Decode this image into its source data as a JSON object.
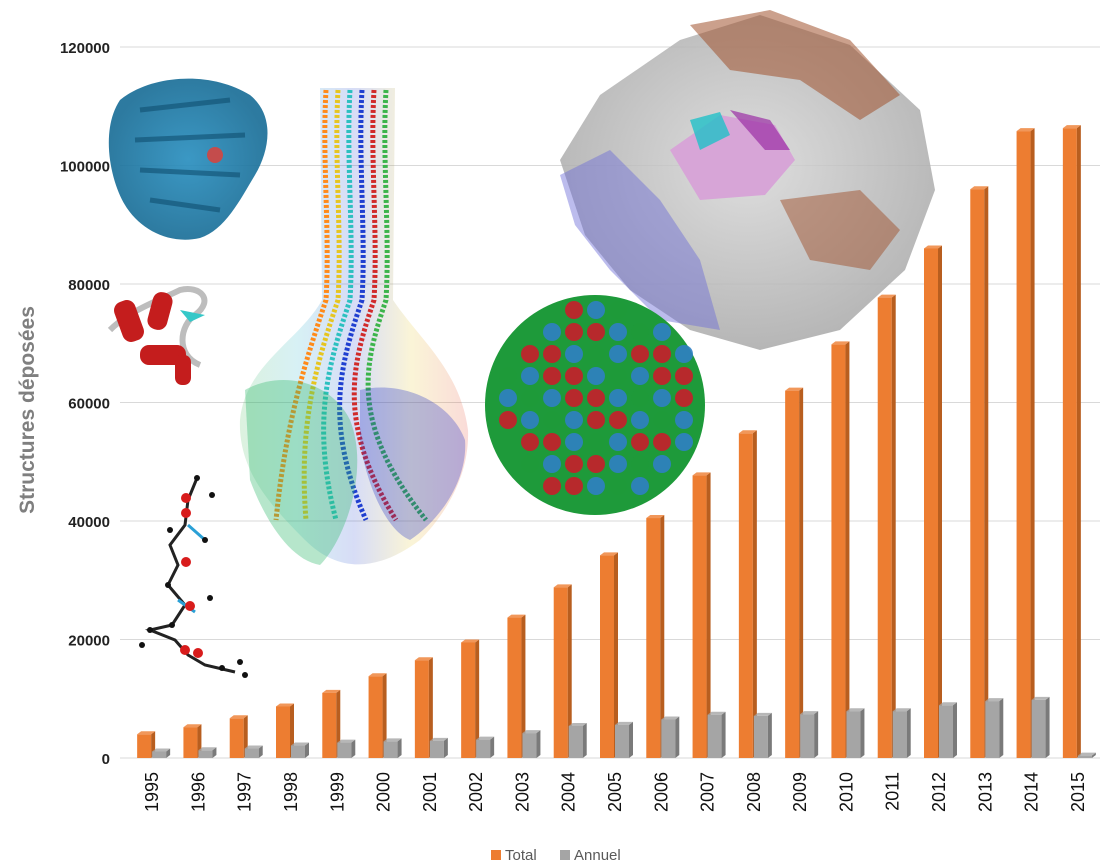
{
  "chart_data": {
    "type": "bar",
    "ylabel": "Structures déposées",
    "xlabel": "",
    "ylim": [
      0,
      120000
    ],
    "yticks": [
      0,
      20000,
      40000,
      60000,
      80000,
      100000,
      120000
    ],
    "ytick_labels": [
      "0",
      "20000",
      "40000",
      "60000",
      "80000",
      "100000",
      "120000"
    ],
    "grid": true,
    "legend_position": "bottom-center",
    "categories": [
      "1995",
      "1996",
      "1997",
      "1998",
      "1999",
      "2000",
      "2001",
      "2002",
      "2003",
      "2004",
      "2005",
      "2006",
      "2007",
      "2008",
      "2009",
      "2010",
      "2011",
      "2012",
      "2013",
      "2014",
      "2015"
    ],
    "series": [
      {
        "name": "Total",
        "color": "#ED7D31",
        "values": [
          4000,
          5200,
          6700,
          8700,
          11000,
          13800,
          16500,
          19500,
          23700,
          28800,
          34200,
          40500,
          47700,
          54800,
          62000,
          69800,
          77700,
          86000,
          96000,
          105800,
          106300
        ]
      },
      {
        "name": "Annuel",
        "color": "#A5A5A5",
        "values": [
          1100,
          1300,
          1600,
          2100,
          2600,
          2800,
          2900,
          3100,
          4200,
          5400,
          5600,
          6500,
          7300,
          7100,
          7400,
          7900,
          7900,
          8900,
          9600,
          9800,
          400
        ]
      }
    ],
    "background_images": [
      "myoglobin-ribbon",
      "small-protein-helices",
      "molecule-ball-and-stick",
      "rainbow-coiled-assembly",
      "virus-capsid",
      "ribosome-complex"
    ]
  }
}
